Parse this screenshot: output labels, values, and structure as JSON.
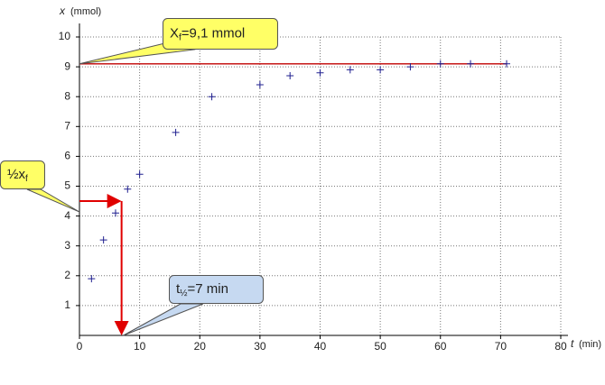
{
  "chart_data": {
    "type": "scatter",
    "x_label": "t",
    "x_unit": "(min)",
    "y_label": "x",
    "y_unit": "(mmol)",
    "xlim": [
      0,
      80
    ],
    "ylim": [
      0,
      10
    ],
    "xticks": [
      0,
      10,
      20,
      30,
      40,
      50,
      60,
      70,
      80
    ],
    "yticks": [
      1,
      2,
      3,
      4,
      5,
      6,
      7,
      8,
      9,
      10
    ],
    "grid": true,
    "marker_color": "#1f1f8f",
    "x": [
      2,
      4,
      6,
      8,
      10,
      16,
      22,
      30,
      35,
      40,
      45,
      50,
      55,
      60,
      65,
      71
    ],
    "values": [
      1.9,
      3.2,
      4.1,
      4.9,
      5.4,
      6.8,
      8.0,
      8.4,
      8.7,
      8.8,
      8.9,
      8.9,
      9.0,
      9.1,
      9.1,
      9.1
    ],
    "reference_line": {
      "y": 9.1,
      "x": [
        0,
        71
      ],
      "color": "#c00000"
    },
    "guide": {
      "x": 7,
      "y": 4.5,
      "color": "#e00000"
    },
    "annotations": [
      {
        "parts": [
          "X",
          "f",
          "=9,1 mmol"
        ],
        "fill": "#ffff66"
      },
      {
        "parts": [
          "½x",
          "f"
        ],
        "fill": "#ffff66"
      },
      {
        "parts": [
          "t",
          "½",
          "=7 min"
        ],
        "fill": "#c6d9f1"
      }
    ]
  }
}
